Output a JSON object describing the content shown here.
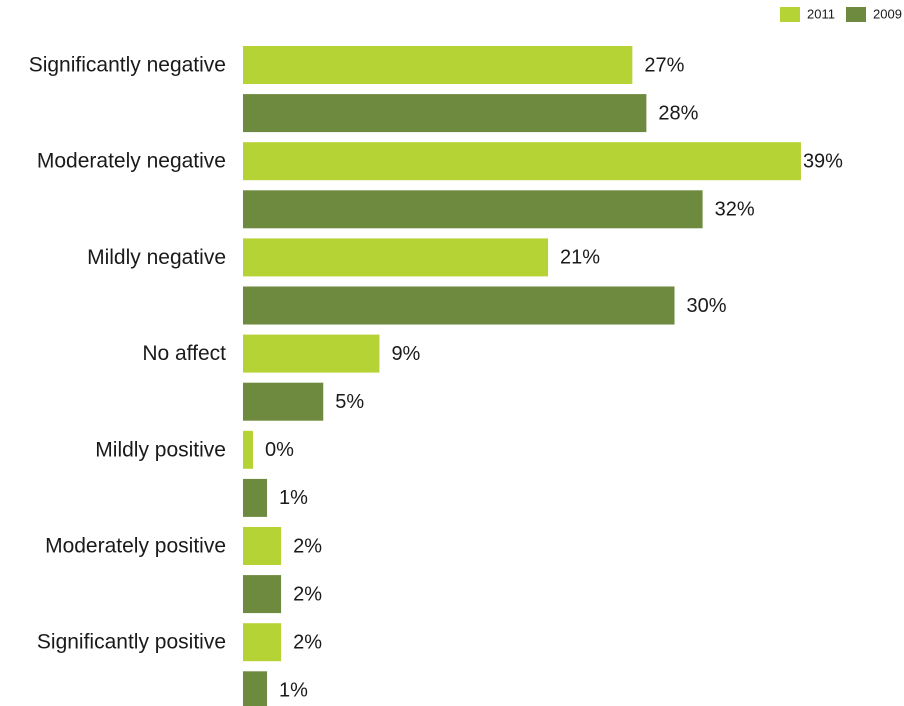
{
  "chart_data": {
    "type": "bar",
    "orientation": "horizontal",
    "legend": "top-right",
    "categories": [
      "Significantly negative",
      "Moderately negative",
      "Mildly negative",
      "No affect",
      "Mildly positive",
      "Moderately positive",
      "Significantly positive"
    ],
    "series": [
      {
        "name": "2011",
        "color": "#b5d334",
        "values": [
          27,
          39,
          21,
          9,
          0,
          2,
          2
        ],
        "value_labels": [
          "27%",
          "39%",
          "21%",
          "9%",
          "0%",
          "2%",
          "2%"
        ]
      },
      {
        "name": "2009",
        "color": "#6e8a3e",
        "values": [
          28,
          32,
          30,
          5,
          1,
          2,
          1
        ],
        "value_labels": [
          "28%",
          "32%",
          "30%",
          "5%",
          "1%",
          "2%",
          "1%"
        ]
      }
    ]
  }
}
